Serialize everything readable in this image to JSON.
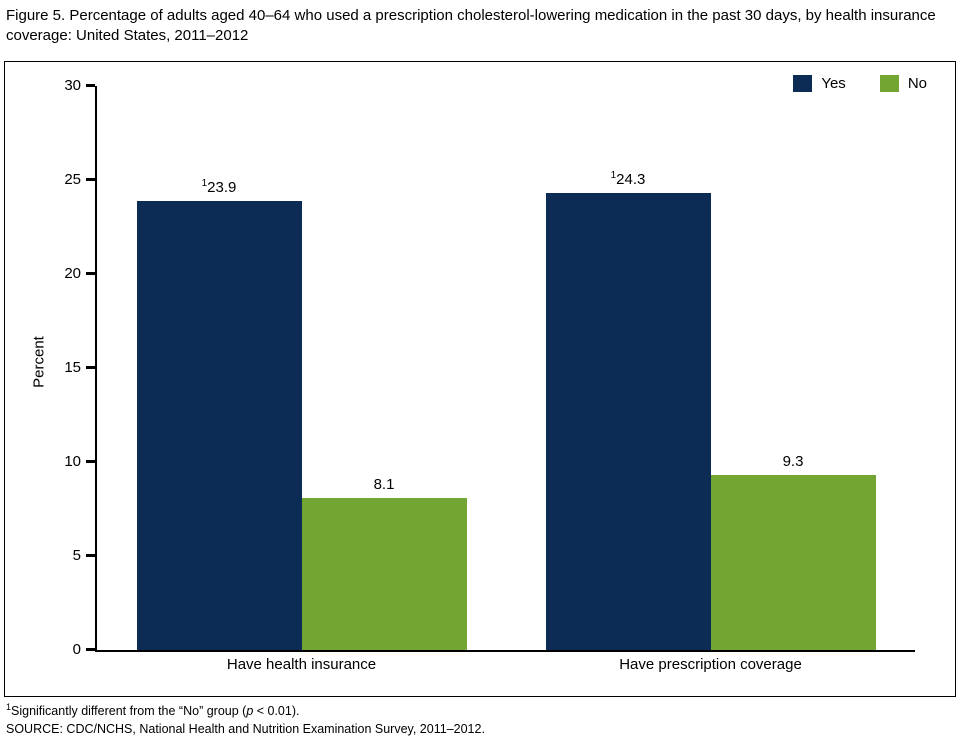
{
  "title": "Figure 5. Percentage of adults aged 40–64 who used a prescription cholesterol-lowering medication in the past 30 days, by health insurance coverage: United States, 2011–2012",
  "chart_data": {
    "type": "bar",
    "categories": [
      "Have health insurance",
      "Have prescription coverage"
    ],
    "series": [
      {
        "name": "Yes",
        "color": "#0c2b55",
        "values": [
          23.9,
          24.3
        ],
        "value_labels": [
          "23.9",
          "24.3"
        ],
        "value_sups": [
          "1",
          "1"
        ]
      },
      {
        "name": "No",
        "color": "#73a533",
        "values": [
          8.1,
          9.3
        ],
        "value_labels": [
          "8.1",
          "9.3"
        ],
        "value_sups": [
          "",
          ""
        ]
      }
    ],
    "xlabel": "",
    "ylabel": "Percent",
    "ylim": [
      0,
      30
    ],
    "yticks": [
      0,
      5,
      10,
      15,
      20,
      25,
      30
    ],
    "grid": false,
    "legend_position": "top-right"
  },
  "footnotes": {
    "note1": {
      "sup": "1",
      "pre": "Significantly different from the “No” group (",
      "italic": "p",
      "post": " < 0.01)."
    },
    "source": "SOURCE: CDC/NCHS, National Health and Nutrition Examination Survey, 2011–2012."
  }
}
